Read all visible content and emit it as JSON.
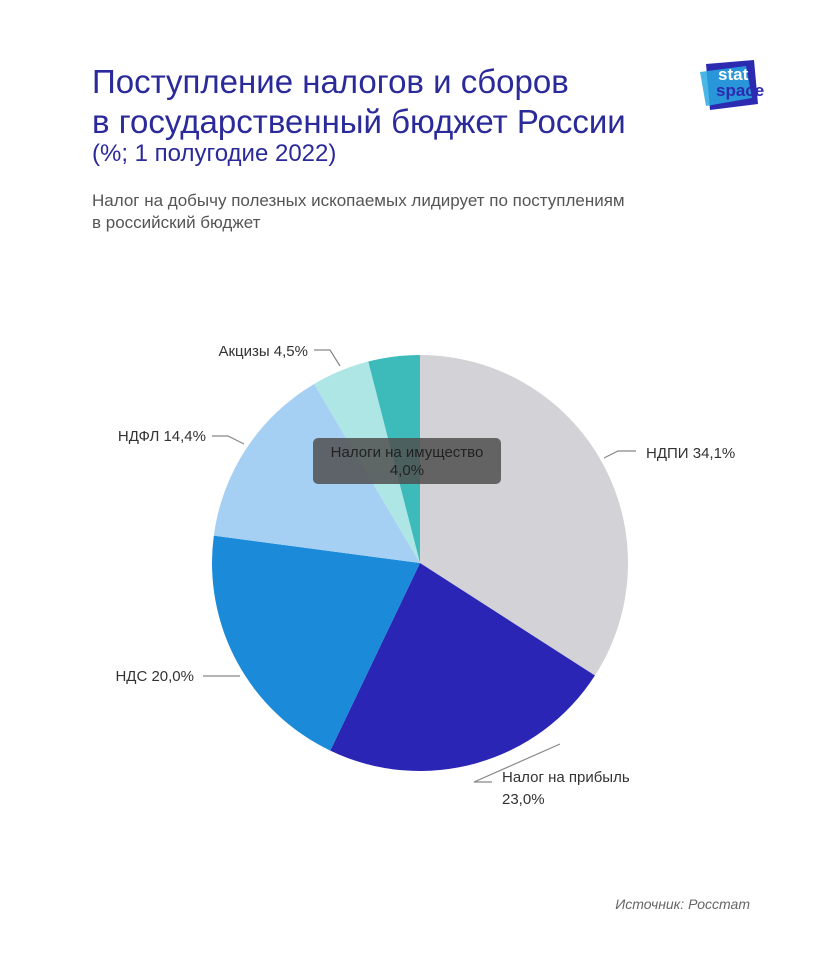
{
  "header": {
    "title_line1": "Поступление налогов и сборов",
    "title_line2": "в государственный бюджет России",
    "title_note": "(%; 1 полугодие 2022)",
    "description_line1": "Налог на добычу полезных ископаемых лидирует по поступлениям",
    "description_line2": "в российский бюджет"
  },
  "logo": {
    "line1": "stat",
    "line2": "space"
  },
  "chart_data": {
    "type": "pie",
    "title": "Поступление налогов и сборов в государственный бюджет России",
    "subtitle": "(%; 1 полугодие 2022)",
    "unit": "%",
    "start_angle_deg": 0,
    "direction": "clockwise",
    "slices": [
      {
        "name": "НДПИ",
        "value": 34.1,
        "label": "НДПИ 34,1%",
        "color": "#d2d2d7"
      },
      {
        "name": "Налог на прибыль",
        "value": 23.0,
        "label_line1": "Налог на прибыль",
        "label_line2": "23,0%",
        "color": "#2a25b4"
      },
      {
        "name": "НДС",
        "value": 20.0,
        "label": "НДС 20,0%",
        "color": "#1b8ad8"
      },
      {
        "name": "НДФЛ",
        "value": 14.4,
        "label": "НДФЛ 14,4%",
        "color": "#a6d0f3"
      },
      {
        "name": "Акцизы",
        "value": 4.5,
        "label": "Акцизы 4,5%",
        "color": "#aee5e5"
      },
      {
        "name": "Налоги на имущество",
        "value": 4.0,
        "label_line1": "Налоги на имущество",
        "label_line2": "4,0%",
        "color": "#3dbbbb"
      }
    ],
    "tooltip": {
      "line1": "Налоги на имущество",
      "line2": "4,0%"
    }
  },
  "footer": {
    "source": "Источник: Росстат"
  }
}
